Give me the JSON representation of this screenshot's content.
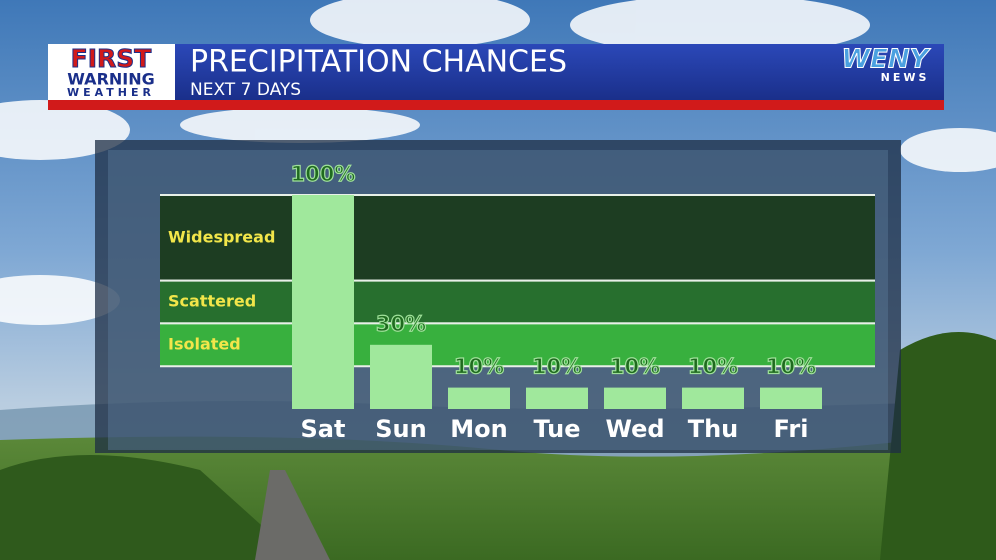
{
  "header": {
    "logo_line1": "FIRST",
    "logo_line2": "WARNING",
    "logo_line3": "WEATHER",
    "station": "WENY",
    "station_sub": "NEWS"
  },
  "chart_data": {
    "type": "bar",
    "title": "PRECIPITATION CHANCES",
    "subtitle": "NEXT 7 DAYS",
    "categories": [
      "Sat",
      "Sun",
      "Mon",
      "Tue",
      "Wed",
      "Thu",
      "Fri"
    ],
    "values": [
      100,
      30,
      10,
      10,
      10,
      10,
      10
    ],
    "value_labels": [
      "100%",
      "30%",
      "10%",
      "10%",
      "10%",
      "10%",
      "10%"
    ],
    "color": "#a0e89c",
    "ylim": [
      0,
      100
    ],
    "zones": [
      {
        "name": "Widespread",
        "from": 60,
        "to": 100,
        "color": "#1d3d22"
      },
      {
        "name": "Scattered",
        "from": 40,
        "to": 60,
        "color": "#276f2e"
      },
      {
        "name": "Isolated",
        "from": 20,
        "to": 40,
        "color": "#38b03e"
      }
    ]
  }
}
